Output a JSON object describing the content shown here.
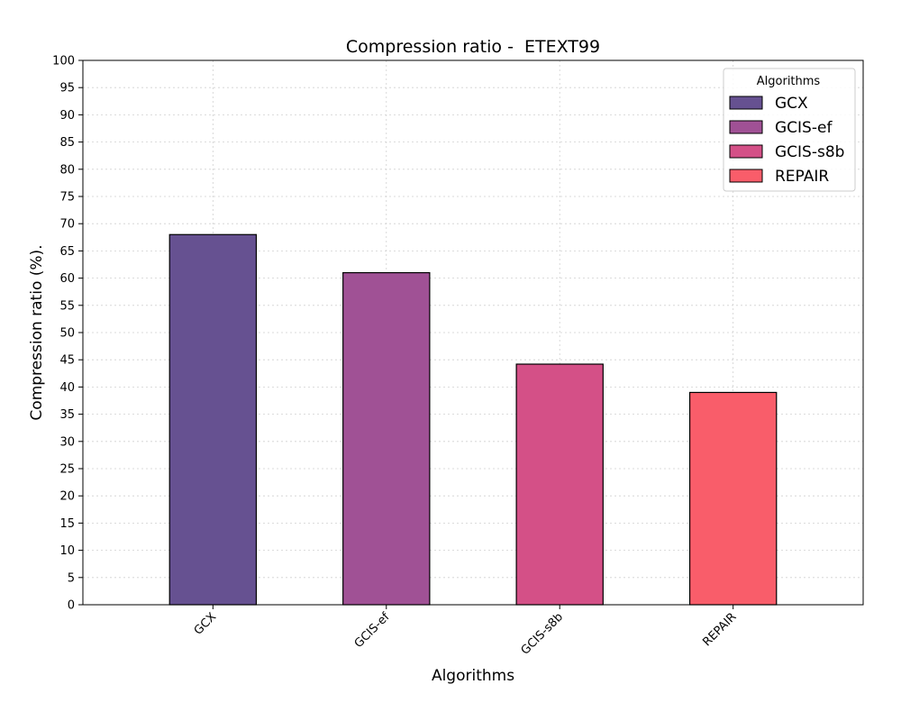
{
  "chart_data": {
    "type": "bar",
    "title": "Compression ratio -  ETEXT99",
    "xlabel": "Algorithms",
    "ylabel": "Compression ratio (%).",
    "categories": [
      "GCX",
      "GCIS-ef",
      "GCIS-s8b",
      "REPAIR"
    ],
    "values": [
      68,
      61,
      44.2,
      39
    ],
    "colors": [
      "#665191",
      "#a05195",
      "#d45087",
      "#f95d6a"
    ],
    "ylim": [
      0,
      100
    ],
    "ytick_step": 5,
    "grid": true,
    "legend": {
      "title": "Algorithms",
      "position": "top-right",
      "entries": [
        "GCX",
        "GCIS-ef",
        "GCIS-s8b",
        "REPAIR"
      ]
    }
  }
}
